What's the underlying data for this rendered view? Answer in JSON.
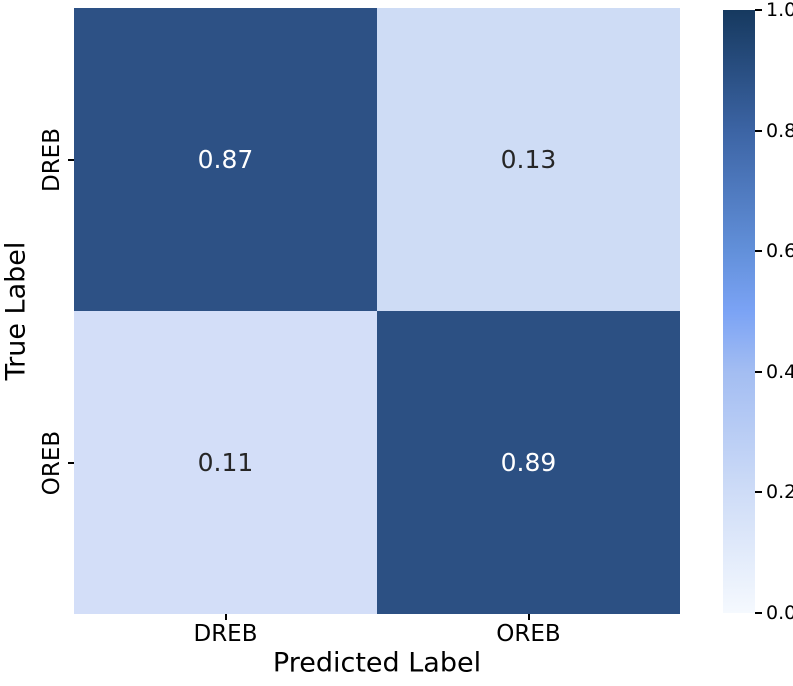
{
  "figure": {
    "background_color": "#ffffff",
    "text_color": "#000000"
  },
  "chart_data": {
    "type": "heatmap",
    "title": "",
    "xlabel": "Predicted Label",
    "ylabel": "True Label",
    "x_categories": [
      "DREB",
      "OREB"
    ],
    "y_categories": [
      "DREB",
      "OREB"
    ],
    "matrix": [
      [
        0.87,
        0.13
      ],
      [
        0.11,
        0.89
      ]
    ],
    "value_decimals": 2,
    "grid": false,
    "cell_colors": [
      [
        "#2d5185",
        "#cedcf5"
      ],
      [
        "#d3def8",
        "#2c5083"
      ]
    ],
    "cell_text_colors": [
      [
        "#ffffff",
        "#262626"
      ],
      [
        "#262626",
        "#ffffff"
      ]
    ],
    "colorbar": {
      "position": "right",
      "min": 0.0,
      "max": 1.0,
      "tick_labels": [
        "1.0",
        "0.8",
        "0.6",
        "0.4",
        "0.2",
        "0.0"
      ],
      "gradient_stops": [
        {
          "pos": 0.0,
          "color": "#f5f9fe"
        },
        {
          "pos": 0.2,
          "color": "#cedcf7"
        },
        {
          "pos": 0.4,
          "color": "#a3bdf2"
        },
        {
          "pos": 0.5,
          "color": "#7ba3f5"
        },
        {
          "pos": 0.6,
          "color": "#6290da"
        },
        {
          "pos": 0.8,
          "color": "#3c64a4"
        },
        {
          "pos": 1.0,
          "color": "#16395f"
        }
      ]
    }
  }
}
